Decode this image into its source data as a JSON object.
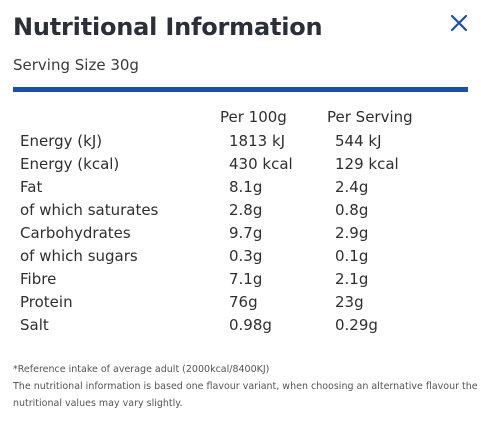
{
  "title": "Nutritional Information",
  "serving_size": "Serving Size 30g",
  "close_icon": "close-icon",
  "accent_color": "#1d4fa8",
  "table": {
    "headers": [
      "",
      "Per 100g",
      "Per Serving"
    ],
    "rows": [
      [
        "Energy (kJ)",
        "1813 kJ",
        "544 kJ"
      ],
      [
        "Energy (kcal)",
        "430 kcal",
        "129 kcal"
      ],
      [
        "Fat",
        "8.1g",
        "2.4g"
      ],
      [
        "of which saturates",
        "2.8g",
        "0.8g"
      ],
      [
        "Carbohydrates",
        "9.7g",
        "2.9g"
      ],
      [
        "of which sugars",
        "0.3g",
        "0.1g"
      ],
      [
        "Fibre",
        "7.1g",
        "2.1g"
      ],
      [
        "Protein",
        "76g",
        "23g"
      ],
      [
        "Salt",
        "0.98g",
        "0.29g"
      ]
    ]
  },
  "footnotes": [
    "*Reference intake of average adult (2000kcal/8400KJ)",
    "The nutritional information is based one flavour variant, when choosing an alternative flavour the",
    "nutritional values may vary slightly."
  ]
}
